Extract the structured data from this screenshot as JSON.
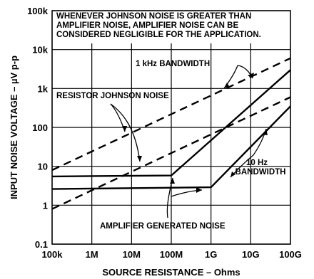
{
  "chart_data": {
    "type": "line",
    "title": "",
    "xlabel": "SOURCE RESISTANCE – Ohms",
    "ylabel": "INPUT NOISE VOLTAGE – µV p-p",
    "x_scale": "log",
    "y_scale": "log",
    "xlim": [
      100000,
      100000000000
    ],
    "ylim": [
      0.1,
      100000
    ],
    "x_ticks": [
      {
        "value": 100000,
        "label": "100k"
      },
      {
        "value": 1000000,
        "label": "1M"
      },
      {
        "value": 10000000,
        "label": "10M"
      },
      {
        "value": 100000000,
        "label": "100M"
      },
      {
        "value": 1000000000,
        "label": "1G"
      },
      {
        "value": 10000000000,
        "label": "10G"
      },
      {
        "value": 100000000000,
        "label": "100G"
      }
    ],
    "y_ticks": [
      {
        "value": 100000,
        "label": "100k"
      },
      {
        "value": 10000,
        "label": "10k"
      },
      {
        "value": 1000,
        "label": "1k"
      },
      {
        "value": 100,
        "label": "100"
      },
      {
        "value": 10,
        "label": "10"
      },
      {
        "value": 1,
        "label": "1"
      },
      {
        "value": 0.1,
        "label": "0.1"
      }
    ],
    "grid": true,
    "series": [
      {
        "style": "dashed",
        "points": [
          [
            100000,
            8
          ],
          [
            100000000000,
            6000
          ]
        ]
      },
      {
        "style": "dashed",
        "points": [
          [
            100000,
            0.8
          ],
          [
            100000000000,
            600
          ]
        ]
      },
      {
        "style": "solid",
        "points": [
          [
            100000,
            5.5
          ],
          [
            100000000,
            5.8
          ],
          [
            100000000000,
            3000
          ]
        ]
      },
      {
        "style": "solid",
        "points": [
          [
            100000,
            2.6
          ],
          [
            1000000000,
            2.9
          ],
          [
            100000000000,
            350
          ]
        ]
      }
    ],
    "annotations": {
      "note_lines": [
        "WHENEVER JOHNSON NOISE IS GREATER THAN",
        "AMPLIFIER NOISE, AMPLIFIER NOISE CAN BE",
        "CONSIDERED NEGLIGIBLE FOR THE APPLICATION."
      ],
      "bw_1khz": "1 kHz BANDWIDTH",
      "resistor_johnson": "RESISTOR JOHNSON NOISE",
      "bw_10hz_line1": "10 Hz",
      "bw_10hz_line2": "BANDWIDTH",
      "amplifier": "AMPLIFIER GENERATED NOISE"
    }
  }
}
